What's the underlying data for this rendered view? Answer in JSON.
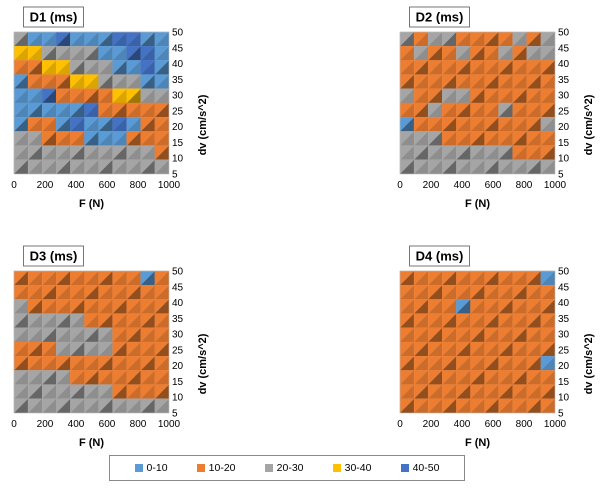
{
  "chart_data": [
    {
      "type": "heatmap",
      "title": "D1 (ms)",
      "xlabel": "F  (N)",
      "ylabel": "dv  (cm/s^2)",
      "x": [
        0,
        100,
        200,
        300,
        400,
        500,
        600,
        700,
        800,
        900,
        1000
      ],
      "y": [
        50,
        45,
        40,
        35,
        30,
        25,
        20,
        15,
        10,
        5
      ],
      "x_ticks": [
        "0",
        "200",
        "400",
        "600",
        "800",
        "1000"
      ],
      "y_ticks": [
        "50",
        "45",
        "40",
        "35",
        "30",
        "25",
        "20",
        "15",
        "10",
        "5"
      ],
      "xlim": [
        0,
        1000
      ],
      "ylim": [
        5,
        50
      ],
      "category_matrix": [
        [
          2,
          0,
          0,
          4,
          0,
          0,
          0,
          4,
          4,
          0,
          0
        ],
        [
          3,
          3,
          2,
          2,
          2,
          2,
          0,
          0,
          4,
          4,
          0
        ],
        [
          1,
          1,
          3,
          3,
          2,
          2,
          2,
          0,
          0,
          4,
          0
        ],
        [
          0,
          1,
          1,
          1,
          3,
          3,
          2,
          2,
          2,
          0,
          0
        ],
        [
          0,
          0,
          4,
          1,
          1,
          1,
          1,
          3,
          3,
          2,
          2
        ],
        [
          0,
          0,
          0,
          0,
          0,
          4,
          1,
          1,
          1,
          1,
          1
        ],
        [
          0,
          1,
          1,
          0,
          4,
          0,
          0,
          4,
          0,
          1,
          1
        ],
        [
          2,
          2,
          1,
          1,
          1,
          0,
          0,
          0,
          1,
          1,
          1
        ],
        [
          2,
          2,
          2,
          2,
          2,
          2,
          2,
          2,
          2,
          2,
          1
        ],
        [
          2,
          2,
          2,
          2,
          2,
          2,
          2,
          2,
          2,
          2,
          2
        ]
      ]
    },
    {
      "type": "heatmap",
      "title": "D2 (ms)",
      "xlabel": "F  (N)",
      "ylabel": "dv  (cm/s^2)",
      "x": [
        0,
        100,
        200,
        300,
        400,
        500,
        600,
        700,
        800,
        900,
        1000
      ],
      "y": [
        50,
        45,
        40,
        35,
        30,
        25,
        20,
        15,
        10,
        5
      ],
      "x_ticks": [
        "0",
        "200",
        "400",
        "600",
        "800",
        "1000"
      ],
      "y_ticks": [
        "50",
        "45",
        "40",
        "35",
        "30",
        "25",
        "20",
        "15",
        "10",
        "5"
      ],
      "xlim": [
        0,
        1000
      ],
      "ylim": [
        5,
        50
      ],
      "category_matrix": [
        [
          2,
          1,
          2,
          2,
          1,
          1,
          1,
          1,
          2,
          1,
          2
        ],
        [
          1,
          2,
          1,
          1,
          2,
          1,
          1,
          2,
          1,
          2,
          2
        ],
        [
          1,
          1,
          1,
          1,
          1,
          1,
          1,
          1,
          1,
          1,
          1
        ],
        [
          1,
          1,
          1,
          1,
          1,
          1,
          1,
          1,
          1,
          1,
          1
        ],
        [
          2,
          1,
          1,
          2,
          2,
          1,
          1,
          1,
          1,
          1,
          1
        ],
        [
          1,
          1,
          2,
          1,
          1,
          1,
          1,
          2,
          1,
          1,
          1
        ],
        [
          0,
          1,
          1,
          1,
          1,
          1,
          1,
          1,
          1,
          1,
          2
        ],
        [
          2,
          2,
          2,
          1,
          1,
          1,
          1,
          1,
          1,
          1,
          1
        ],
        [
          2,
          2,
          2,
          2,
          2,
          2,
          2,
          2,
          1,
          1,
          1
        ],
        [
          2,
          2,
          2,
          2,
          2,
          2,
          2,
          2,
          2,
          2,
          2
        ]
      ]
    },
    {
      "type": "heatmap",
      "title": "D3 (ms)",
      "xlabel": "F  (N)",
      "ylabel": "dv  (cm/s^2)",
      "x": [
        0,
        100,
        200,
        300,
        400,
        500,
        600,
        700,
        800,
        900,
        1000
      ],
      "y": [
        50,
        45,
        40,
        35,
        30,
        25,
        20,
        15,
        10,
        5
      ],
      "x_ticks": [
        "0",
        "200",
        "400",
        "600",
        "800",
        "1000"
      ],
      "y_ticks": [
        "50",
        "45",
        "40",
        "35",
        "30",
        "25",
        "20",
        "15",
        "10",
        "5"
      ],
      "xlim": [
        0,
        1000
      ],
      "ylim": [
        5,
        50
      ],
      "category_matrix": [
        [
          1,
          1,
          1,
          1,
          1,
          1,
          1,
          1,
          1,
          0,
          1
        ],
        [
          1,
          1,
          1,
          1,
          1,
          1,
          1,
          1,
          1,
          1,
          1
        ],
        [
          2,
          1,
          1,
          1,
          1,
          1,
          1,
          1,
          1,
          1,
          1
        ],
        [
          2,
          2,
          2,
          2,
          2,
          1,
          1,
          1,
          1,
          1,
          1
        ],
        [
          2,
          2,
          2,
          2,
          2,
          2,
          2,
          1,
          1,
          1,
          1
        ],
        [
          1,
          1,
          1,
          2,
          2,
          2,
          2,
          1,
          1,
          1,
          1
        ],
        [
          1,
          1,
          1,
          1,
          1,
          1,
          1,
          1,
          1,
          1,
          1
        ],
        [
          2,
          2,
          2,
          2,
          1,
          1,
          1,
          1,
          1,
          1,
          1
        ],
        [
          2,
          2,
          2,
          2,
          2,
          2,
          2,
          1,
          1,
          1,
          1
        ],
        [
          2,
          2,
          2,
          2,
          2,
          2,
          2,
          2,
          2,
          2,
          2
        ]
      ]
    },
    {
      "type": "heatmap",
      "title": "D4 (ms)",
      "xlabel": "F  (N)",
      "ylabel": "dv  (cm/s^2)",
      "x": [
        0,
        100,
        200,
        300,
        400,
        500,
        600,
        700,
        800,
        900,
        1000
      ],
      "y": [
        50,
        45,
        40,
        35,
        30,
        25,
        20,
        15,
        10,
        5
      ],
      "x_ticks": [
        "0",
        "200",
        "400",
        "600",
        "800",
        "1000"
      ],
      "y_ticks": [
        "50",
        "45",
        "40",
        "35",
        "30",
        "25",
        "20",
        "15",
        "10",
        "5"
      ],
      "xlim": [
        0,
        1000
      ],
      "ylim": [
        5,
        50
      ],
      "category_matrix": [
        [
          1,
          1,
          1,
          1,
          1,
          1,
          1,
          1,
          1,
          1,
          0
        ],
        [
          1,
          1,
          1,
          1,
          1,
          1,
          1,
          1,
          1,
          1,
          1
        ],
        [
          1,
          1,
          1,
          1,
          0,
          1,
          1,
          1,
          1,
          1,
          1
        ],
        [
          1,
          1,
          1,
          1,
          1,
          1,
          1,
          1,
          1,
          1,
          1
        ],
        [
          1,
          1,
          1,
          1,
          1,
          1,
          1,
          1,
          1,
          1,
          1
        ],
        [
          1,
          1,
          1,
          1,
          1,
          1,
          1,
          1,
          1,
          1,
          1
        ],
        [
          1,
          1,
          1,
          1,
          1,
          1,
          1,
          1,
          1,
          1,
          0
        ],
        [
          1,
          1,
          1,
          1,
          1,
          1,
          1,
          1,
          1,
          1,
          1
        ],
        [
          1,
          1,
          1,
          1,
          1,
          1,
          1,
          1,
          1,
          1,
          1
        ],
        [
          1,
          1,
          1,
          1,
          1,
          1,
          1,
          1,
          1,
          1,
          1
        ]
      ]
    }
  ],
  "legend": {
    "placement": "bottom",
    "items": [
      {
        "label": "0-10",
        "color": "#5b9bd5"
      },
      {
        "label": "10-20",
        "color": "#ed7d31"
      },
      {
        "label": "20-30",
        "color": "#a5a5a5"
      },
      {
        "label": "30-40",
        "color": "#ffc000"
      },
      {
        "label": "40-50",
        "color": "#4472c4"
      }
    ]
  }
}
